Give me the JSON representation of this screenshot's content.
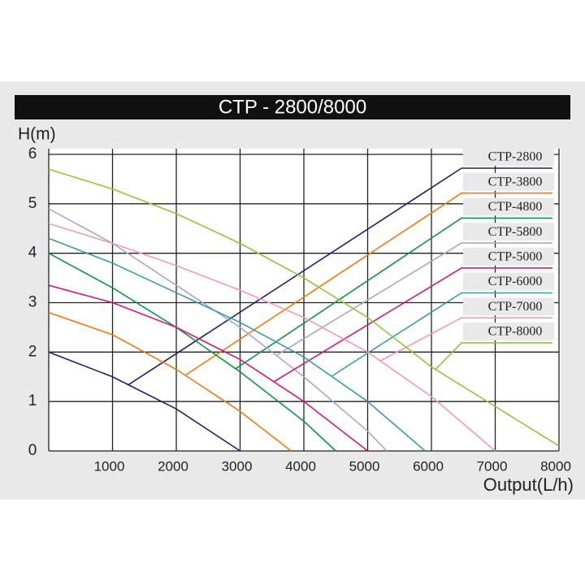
{
  "chart_data": {
    "type": "line",
    "title": "CTP - 2800/8000",
    "y_label": "H(m)",
    "x_label": "Output(L/h)",
    "xlim": [
      0,
      8000
    ],
    "xticks": [
      1000,
      2000,
      3000,
      4000,
      5000,
      6000,
      7000,
      8000
    ],
    "ylim": [
      0,
      6
    ],
    "yticks": [
      0,
      1,
      2,
      3,
      4,
      5,
      6
    ],
    "grid": true,
    "legend": "right",
    "series": [
      {
        "name": "CTP-2800",
        "color": "#1f1f6e",
        "x": [
          0,
          1000,
          2000,
          3000
        ],
        "values": [
          2.0,
          1.5,
          0.85,
          0
        ]
      },
      {
        "name": "CTP-3800",
        "color": "#f07a10",
        "x": [
          0,
          1000,
          2000,
          3000,
          3800
        ],
        "values": [
          2.8,
          2.35,
          1.65,
          0.8,
          0
        ]
      },
      {
        "name": "CTP-4800",
        "color": "#12924a",
        "x": [
          0,
          1000,
          2000,
          3000,
          4000,
          4500
        ],
        "values": [
          4.0,
          3.3,
          2.5,
          1.6,
          0.6,
          0
        ]
      },
      {
        "name": "CTP-5800",
        "color": "#a8a4d4",
        "x": [
          0,
          1000,
          2000,
          3000,
          4000,
          5000,
          5300
        ],
        "values": [
          4.9,
          4.2,
          3.35,
          2.5,
          1.5,
          0.4,
          0
        ]
      },
      {
        "name": "CTP-5000",
        "color": "#d4197a",
        "x": [
          0,
          1000,
          2000,
          3000,
          4000,
          5000
        ],
        "values": [
          3.35,
          3.0,
          2.5,
          1.85,
          1.0,
          0
        ]
      },
      {
        "name": "CTP-6000",
        "color": "#3a9aa6",
        "x": [
          0,
          1000,
          2000,
          3000,
          4000,
          5000,
          5900
        ],
        "values": [
          4.3,
          3.8,
          3.2,
          2.6,
          1.9,
          1.0,
          0
        ]
      },
      {
        "name": "CTP-7000",
        "color": "#f29cae",
        "x": [
          0,
          1000,
          2000,
          3000,
          4000,
          5000,
          6000,
          7000
        ],
        "values": [
          4.6,
          4.2,
          3.75,
          3.25,
          2.7,
          2.0,
          1.1,
          0
        ]
      },
      {
        "name": "CTP-8000",
        "color": "#8cc83c",
        "x": [
          0,
          1000,
          2000,
          3000,
          4000,
          5000,
          6000,
          7000,
          8000
        ],
        "values": [
          5.7,
          5.3,
          4.8,
          4.2,
          3.5,
          2.7,
          1.7,
          0.9,
          0.1
        ]
      }
    ]
  }
}
